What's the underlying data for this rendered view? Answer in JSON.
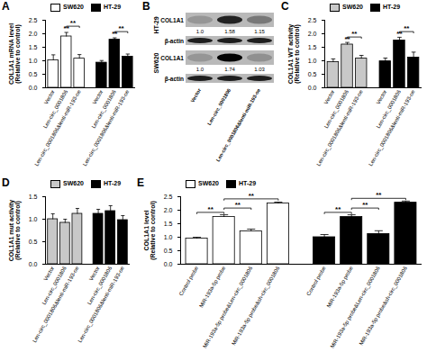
{
  "chart_data": [
    {
      "panel": "A",
      "type": "bar",
      "y_label": "COL1A1 mRNA level\n(Relative to control)",
      "categories": [
        "Vector",
        "Len-circ_0001806",
        "Len-circ_0001806&lenti-miR-193-oe"
      ],
      "series": [
        {
          "name": "SW620",
          "color": "#ffffff",
          "values": [
            1.02,
            1.9,
            1.08
          ],
          "errors": [
            0.2,
            0.15,
            0.15
          ],
          "annotations": [
            {
              "from": 1,
              "to": 1,
              "y": 2.08,
              "label": "**"
            },
            {
              "from": 1,
              "to": 2,
              "y": 2.28,
              "label": "**"
            }
          ]
        },
        {
          "name": "HT-29",
          "color": "#000000",
          "values": [
            0.93,
            1.78,
            1.15
          ],
          "errors": [
            0.08,
            0.07,
            0.1
          ],
          "annotations": [
            {
              "from": 1,
              "to": 1,
              "y": 1.88,
              "label": "**"
            },
            {
              "from": 1,
              "to": 2,
              "y": 2.08,
              "label": "**"
            }
          ]
        }
      ],
      "ylim": [
        0,
        2.5
      ],
      "yticks": [
        {
          "value": 0,
          "label": "0.0"
        },
        {
          "value": 0.5,
          "label": "0.5"
        },
        {
          "value": 1,
          "label": "1.0"
        },
        {
          "value": 1.5,
          "label": "1.5"
        },
        {
          "value": 2,
          "label": "2.0"
        },
        {
          "value": 2.5,
          "label": "2.5"
        }
      ],
      "legend": "top"
    },
    {
      "panel": "C",
      "type": "bar",
      "y_label": "COL1A1 WT activity\n(Relative to control)",
      "categories": [
        "Vector",
        "Len-circ_0001806",
        "Len-circ_0001806&lenti-miR-193-oe"
      ],
      "series": [
        {
          "name": "SW620",
          "color": "#c8c8c8",
          "values": [
            0.95,
            1.6,
            1.08
          ],
          "errors": [
            0.12,
            0.08,
            0.12
          ],
          "annotations": [
            {
              "from": 1,
              "to": 1,
              "y": 1.7,
              "label": "**"
            },
            {
              "from": 1,
              "to": 2,
              "y": 1.88,
              "label": "**"
            }
          ]
        },
        {
          "name": "HT-29",
          "color": "#000000",
          "values": [
            0.98,
            1.75,
            1.12
          ],
          "errors": [
            0.12,
            0.12,
            0.2
          ],
          "annotations": [
            {
              "from": 1,
              "to": 1,
              "y": 1.9,
              "label": "**"
            },
            {
              "from": 1,
              "to": 2,
              "y": 2.08,
              "label": "**"
            }
          ]
        }
      ],
      "ylim": [
        0,
        2.5
      ],
      "yticks": [
        {
          "value": 0,
          "label": "0.0"
        },
        {
          "value": 0.5,
          "label": "0.5"
        },
        {
          "value": 1,
          "label": "1.0"
        },
        {
          "value": 1.5,
          "label": "1.5"
        },
        {
          "value": 2,
          "label": "2.0"
        },
        {
          "value": 2.5,
          "label": "2.5"
        }
      ],
      "legend": "top"
    },
    {
      "panel": "D",
      "type": "bar",
      "y_label": "COL1A1 mut activity\n(Relative to control)",
      "categories": [
        "Vector",
        "Len-circ_0001806",
        "Len-circ_0001806&lenti-miR-193-oe"
      ],
      "series": [
        {
          "name": "SW620",
          "color": "#c8c8c8",
          "values": [
            1.0,
            0.92,
            1.12
          ],
          "errors": [
            0.12,
            0.08,
            0.12
          ],
          "annotations": []
        },
        {
          "name": "HT-29",
          "color": "#000000",
          "values": [
            1.12,
            1.18,
            0.98
          ],
          "errors": [
            0.1,
            0.12,
            0.1
          ],
          "annotations": []
        }
      ],
      "ylim": [
        0,
        1.5
      ],
      "yticks": [
        {
          "value": 0,
          "label": "0.0"
        },
        {
          "value": 0.5,
          "label": "0.5"
        },
        {
          "value": 1,
          "label": "1.0"
        },
        {
          "value": 1.5,
          "label": "1.5"
        }
      ],
      "legend": "top"
    },
    {
      "panel": "E",
      "type": "bar",
      "y_label": "COL1A1 level\n(Relative to control)",
      "categories": [
        "Control probe",
        "MiR-193a-5p probe",
        "MiR-193a-5p probe&Len-circ_0001806",
        "MiR-193a-5p probe&sh-circ_0001806"
      ],
      "series": [
        {
          "name": "SW620",
          "color": "#ffffff",
          "values": [
            0.95,
            1.75,
            1.22,
            2.25
          ],
          "errors": [
            0.05,
            0.08,
            0.08,
            0.05
          ],
          "annotations": [
            {
              "from": 0,
              "to": 1,
              "y": 1.92,
              "label": "**"
            },
            {
              "from": 1,
              "to": 2,
              "y": 2.08,
              "label": "**"
            },
            {
              "from": 1,
              "to": 3,
              "y": 2.42,
              "label": "**"
            }
          ]
        },
        {
          "name": "HT-29",
          "color": "#000000",
          "values": [
            1.0,
            1.75,
            1.12,
            2.28
          ],
          "errors": [
            0.1,
            0.08,
            0.12,
            0.06
          ],
          "annotations": [
            {
              "from": 0,
              "to": 1,
              "y": 1.92,
              "label": "**"
            },
            {
              "from": 1,
              "to": 2,
              "y": 2.08,
              "label": "**"
            },
            {
              "from": 1,
              "to": 3,
              "y": 2.44,
              "label": "**"
            }
          ]
        }
      ],
      "ylim": [
        0,
        2.5
      ],
      "yticks": [
        {
          "value": 0,
          "label": "0.0"
        },
        {
          "value": 0.5,
          "label": "0.5"
        },
        {
          "value": 1,
          "label": "1.0"
        },
        {
          "value": 1.5,
          "label": "1.5"
        },
        {
          "value": 2,
          "label": "2.0"
        },
        {
          "value": 2.5,
          "label": "2.5"
        }
      ],
      "legend": "top"
    }
  ],
  "blot": {
    "panel": "B",
    "lanes": [
      "Vector",
      "Len-circ_0001806",
      "Len-circ_0001806&lenti-miR-193-oe"
    ],
    "rows": [
      {
        "cell_line": "HT-29",
        "target": "COL1A1",
        "loading": "β-actin",
        "ratios": [
          "1.0",
          "1.58",
          "1.15"
        ]
      },
      {
        "cell_line": "SW620",
        "target": "COL1A1",
        "loading": "β-actin",
        "ratios": [
          "1.0",
          "1.74",
          "1.03"
        ]
      }
    ]
  }
}
